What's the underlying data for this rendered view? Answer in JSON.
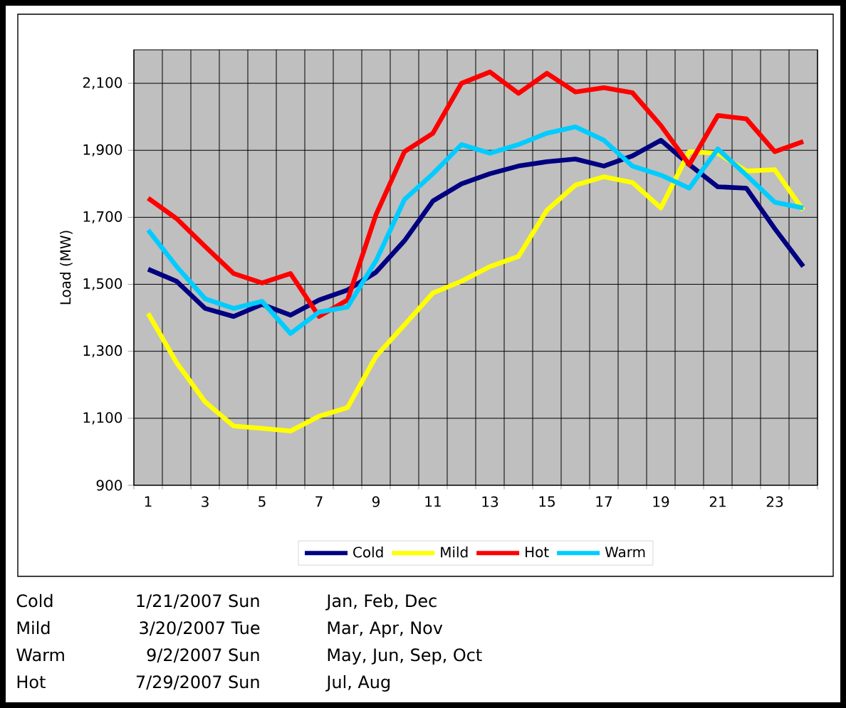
{
  "chart_data": {
    "type": "line",
    "ylabel": "Load (MW)",
    "categories": [
      "1",
      null,
      "3",
      null,
      "5",
      null,
      "7",
      null,
      "9",
      null,
      "11",
      null,
      "13",
      null,
      "15",
      null,
      "17",
      null,
      "19",
      null,
      "21",
      null,
      "23",
      null
    ],
    "series": [
      {
        "name": "Cold",
        "color": "#000080",
        "values": [
          1545,
          1509,
          1428,
          1404,
          1440,
          1408,
          1453,
          1483,
          1536,
          1630,
          1749,
          1800,
          1830,
          1853,
          1866,
          1874,
          1853,
          1883,
          1930,
          1857,
          1791,
          1787,
          1666,
          1553
        ]
      },
      {
        "name": "Mild",
        "color": "#ffff00",
        "values": [
          1413,
          1266,
          1149,
          1077,
          1070,
          1062,
          1106,
          1132,
          1285,
          1379,
          1474,
          1509,
          1553,
          1583,
          1721,
          1796,
          1821,
          1804,
          1728,
          1896,
          1891,
          1838,
          1842,
          1721
        ]
      },
      {
        "name": "Hot",
        "color": "#ff0000",
        "values": [
          1757,
          1696,
          1613,
          1532,
          1504,
          1532,
          1404,
          1453,
          1708,
          1896,
          1951,
          2100,
          2134,
          2070,
          2130,
          2074,
          2087,
          2072,
          1974,
          1857,
          2004,
          1994,
          1896,
          1926
        ]
      },
      {
        "name": "Warm",
        "color": "#00ccff",
        "values": [
          1662,
          1553,
          1457,
          1428,
          1449,
          1353,
          1417,
          1432,
          1570,
          1753,
          1830,
          1917,
          1891,
          1917,
          1951,
          1970,
          1930,
          1853,
          1826,
          1787,
          1904,
          1826,
          1745,
          1728
        ]
      }
    ],
    "ylim": [
      900,
      2200
    ],
    "yticks": [
      {
        "value": 900,
        "label": "900"
      },
      {
        "value": 1100,
        "label": "1,100"
      },
      {
        "value": 1300,
        "label": "1,300"
      },
      {
        "value": 1500,
        "label": "1,500"
      },
      {
        "value": 1700,
        "label": "1,700"
      },
      {
        "value": 1900,
        "label": "1,900"
      },
      {
        "value": 2100,
        "label": "2,100"
      }
    ],
    "grid": true,
    "legend": "bottom",
    "annotations": [
      "Cold",
      "1/21/2007 Sun",
      "Jan, Feb, Dec",
      "Mild",
      "3/20/2007 Tue",
      "Mar, Apr, Nov",
      "Warm",
      "9/2/2007 Sun",
      "May, Jun, Sep, Oct",
      "Hot",
      "7/29/2007 Sun",
      "Jul, Aug"
    ]
  }
}
